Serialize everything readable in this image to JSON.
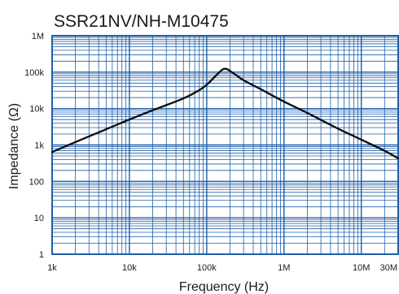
{
  "chart_data": {
    "type": "line",
    "title": "SSR21NV/NH-M10475",
    "xlabel": "Frequency (Hz)",
    "ylabel": "Impedance (Ω)",
    "x_scale": "log",
    "y_scale": "log",
    "xlim": [
      1000,
      30000000
    ],
    "ylim": [
      1,
      1000000
    ],
    "x_ticks": [
      {
        "value": 1000,
        "label": "1k"
      },
      {
        "value": 10000,
        "label": "10k"
      },
      {
        "value": 100000,
        "label": "100k"
      },
      {
        "value": 1000000,
        "label": "1M"
      },
      {
        "value": 10000000,
        "label": "10M"
      },
      {
        "value": 30000000,
        "label": "30M"
      }
    ],
    "y_ticks": [
      {
        "value": 1,
        "label": "1"
      },
      {
        "value": 10,
        "label": "10"
      },
      {
        "value": 100,
        "label": "100"
      },
      {
        "value": 1000,
        "label": "1k"
      },
      {
        "value": 10000,
        "label": "10k"
      },
      {
        "value": 100000,
        "label": "100k"
      },
      {
        "value": 1000000,
        "label": "1M"
      }
    ],
    "grid": true,
    "colors": {
      "grid": "#1f5fa8",
      "line": "#111111",
      "frame": "#1f5fa8"
    },
    "series": [
      {
        "x": [
          1000,
          2000,
          5000,
          10000,
          20000,
          50000,
          80000,
          100000,
          130000,
          160000,
          180000,
          200000,
          250000,
          300000,
          500000,
          1000000,
          2000000,
          5000000,
          10000000,
          20000000,
          30000000
        ],
        "y": [
          640,
          1200,
          2700,
          5000,
          9000,
          19000,
          32000,
          45000,
          78000,
          118000,
          122000,
          108000,
          78000,
          60000,
          34000,
          15500,
          7600,
          2800,
          1400,
          690,
          430
        ]
      }
    ]
  }
}
